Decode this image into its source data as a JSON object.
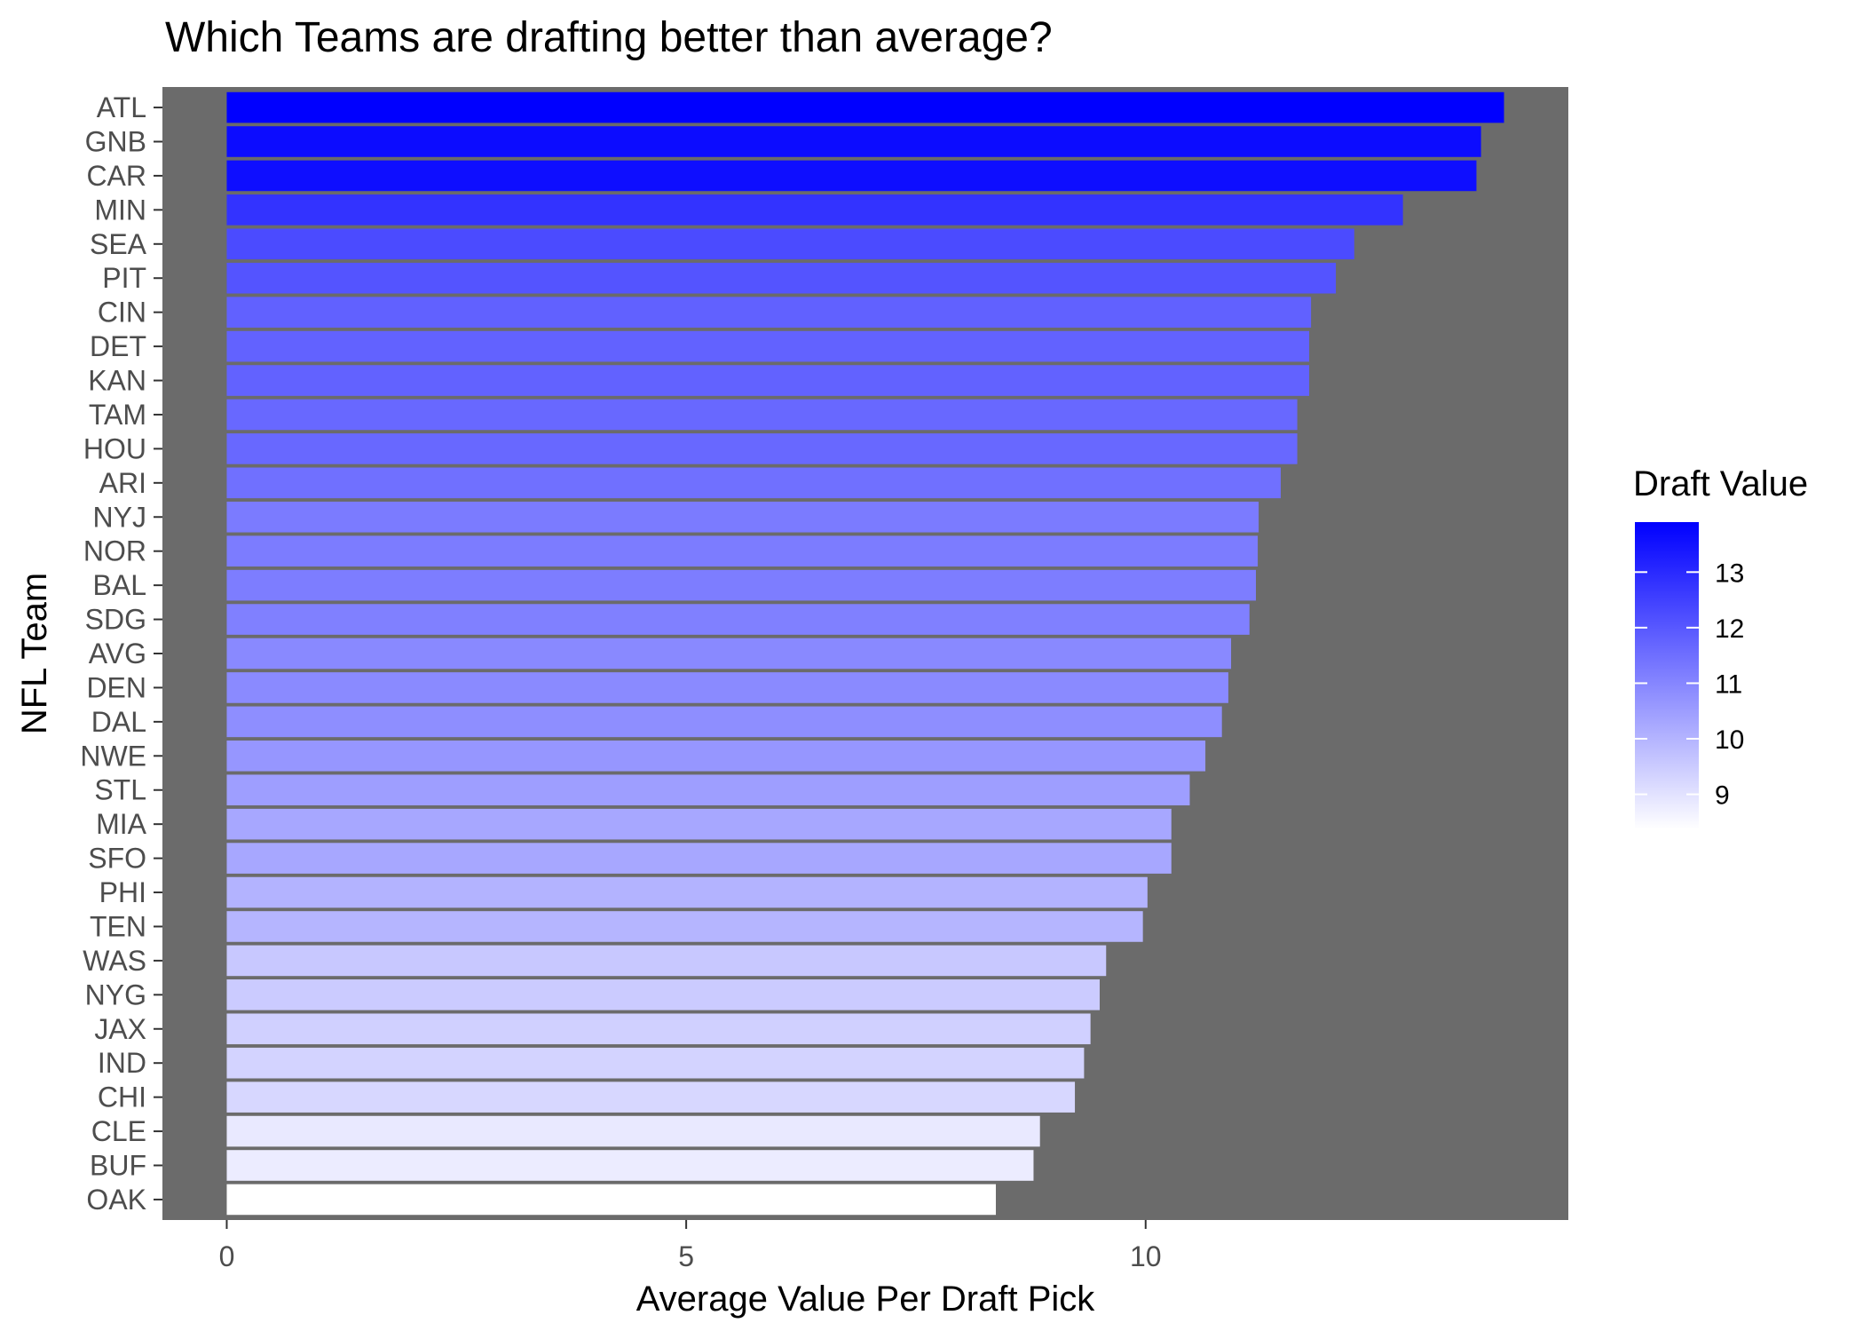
{
  "chart_data": {
    "type": "bar",
    "orientation": "horizontal",
    "title": "Which Teams are drafting better than average?",
    "xlabel": "Average Value Per Draft Pick",
    "ylabel": "NFL Team",
    "xlim": [
      -0.7,
      14.6
    ],
    "x_ticks": [
      0,
      5,
      10
    ],
    "grid": false,
    "categories": [
      "ATL",
      "GNB",
      "CAR",
      "MIN",
      "SEA",
      "PIT",
      "CIN",
      "DET",
      "KAN",
      "TAM",
      "HOU",
      "ARI",
      "NYJ",
      "NOR",
      "BAL",
      "SDG",
      "AVG",
      "DEN",
      "DAL",
      "NWE",
      "STL",
      "MIA",
      "SFO",
      "PHI",
      "TEN",
      "WAS",
      "NYG",
      "JAX",
      "IND",
      "CHI",
      "CLE",
      "BUF",
      "OAK"
    ],
    "values": [
      13.9,
      13.65,
      13.6,
      12.8,
      12.27,
      12.07,
      11.8,
      11.78,
      11.78,
      11.65,
      11.65,
      11.47,
      11.23,
      11.22,
      11.2,
      11.13,
      10.93,
      10.9,
      10.83,
      10.65,
      10.48,
      10.28,
      10.28,
      10.02,
      9.97,
      9.57,
      9.5,
      9.4,
      9.33,
      9.23,
      8.85,
      8.78,
      8.37
    ],
    "legend": {
      "title": "Draft Value",
      "position": "right",
      "ticks": [
        9,
        10,
        11,
        12,
        13
      ],
      "range": [
        8.37,
        13.9
      ],
      "low_color": "#ffffff",
      "high_color": "#0000ff"
    },
    "panel_color": "#6b6b6b"
  }
}
